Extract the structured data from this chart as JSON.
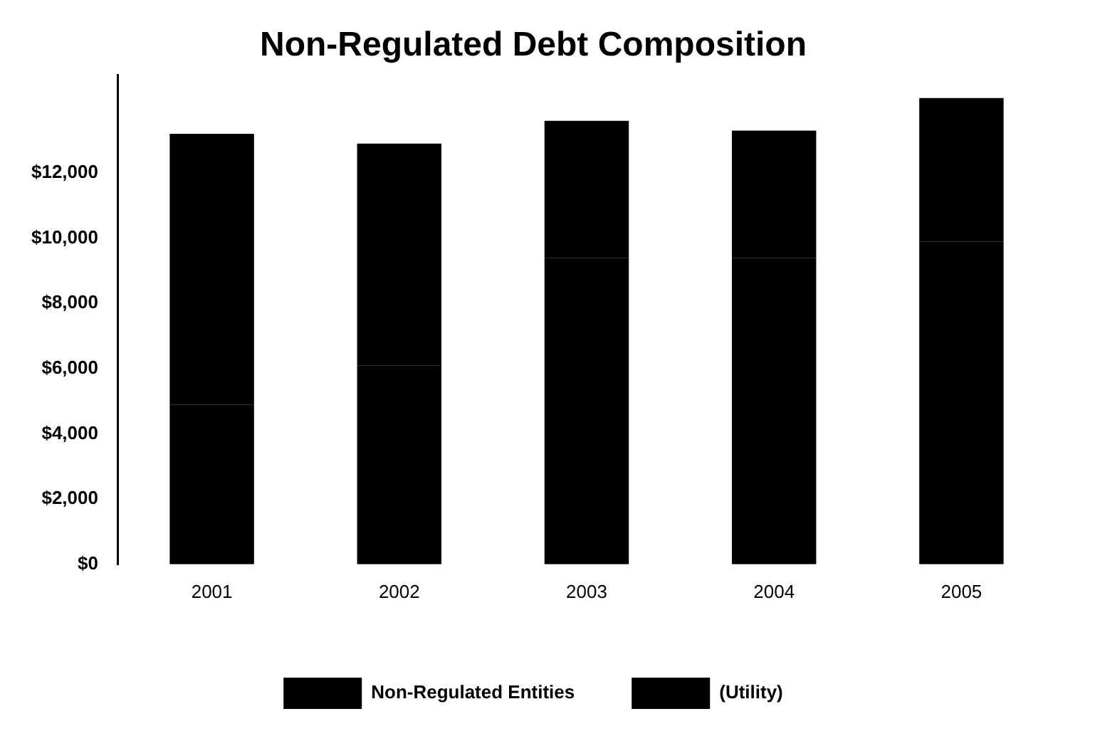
{
  "chart_data": {
    "type": "bar",
    "title": "Non-Regulated Debt Composition",
    "categories": [
      "2001",
      "2002",
      "2003",
      "2004",
      "2005"
    ],
    "stacked": true,
    "series": [
      {
        "name": "(Utility)",
        "color": "#000000",
        "values": [
          4900,
          6100,
          9400,
          9400,
          9900
        ]
      },
      {
        "name": "Non-Regulated Entities",
        "color": "#000000",
        "values": [
          8300,
          6800,
          4200,
          3900,
          4400
        ]
      }
    ],
    "ylim": [
      0,
      15000
    ],
    "yticks": [
      {
        "value": 0,
        "label": "$0"
      },
      {
        "value": 2000,
        "label": "$2,000"
      },
      {
        "value": 4000,
        "label": "$4,000"
      },
      {
        "value": 6000,
        "label": "$6,000"
      },
      {
        "value": 8000,
        "label": "$8,000"
      },
      {
        "value": 10000,
        "label": "$10,000"
      },
      {
        "value": 12000,
        "label": "$12,000"
      }
    ],
    "grid": false,
    "legend": "bottom"
  }
}
